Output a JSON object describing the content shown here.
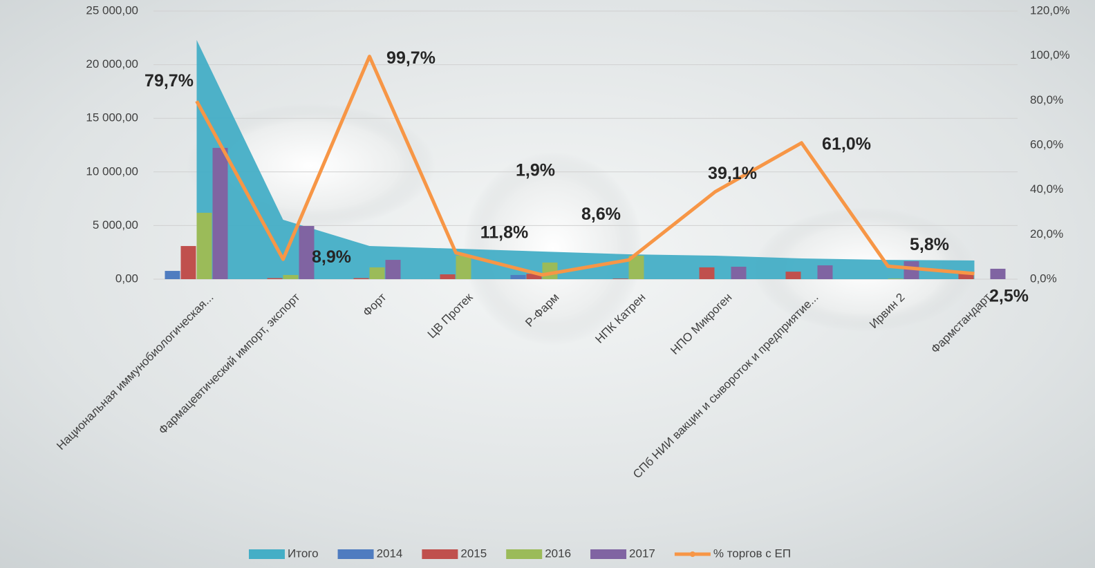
{
  "chart_data": {
    "type": "combo",
    "categories": [
      "Национальная иммунобиологическая...",
      "Фармацевтический импорт, экспорт",
      "Форт",
      "ЦВ Протек",
      "Р-Фарм",
      "НПК Катрен",
      "НПО Микроген",
      "СПб НИИ вакцин и сывороток и предприятие...",
      "Ирвин 2",
      "Фармстандарт"
    ],
    "series": [
      {
        "name": "Итого",
        "kind": "area",
        "color": "#45aec6",
        "values": [
          22300,
          5540,
          3090,
          2840,
          2580,
          2320,
          2190,
          1930,
          1800,
          1740
        ]
      },
      {
        "name": "2014",
        "kind": "bar",
        "color": "#4f7cc0",
        "values": [
          770,
          0,
          0,
          0,
          390,
          0,
          0,
          0,
          0,
          0
        ]
      },
      {
        "name": "2015",
        "kind": "bar",
        "color": "#c0504d",
        "values": [
          3090,
          100,
          100,
          450,
          500,
          50,
          1100,
          700,
          0,
          500
        ]
      },
      {
        "name": "2016",
        "kind": "bar",
        "color": "#9bbb59",
        "values": [
          6190,
          390,
          1100,
          2190,
          1550,
          2190,
          0,
          0,
          50,
          0
        ]
      },
      {
        "name": "2017",
        "kind": "bar",
        "color": "#8064a2",
        "values": [
          12240,
          4960,
          1800,
          0,
          0,
          0,
          1160,
          1290,
          1680,
          970
        ]
      },
      {
        "name": "% торгов с ЕП",
        "kind": "line",
        "axis": "y2",
        "color": "#f79646",
        "values": [
          79.7,
          8.9,
          99.7,
          11.8,
          1.9,
          8.6,
          39.1,
          61.0,
          5.8,
          2.5
        ],
        "value_labels": [
          "79,7%",
          "8,9%",
          "99,7%",
          "11,8%",
          "1,9%",
          "8,6%",
          "39,1%",
          "61,0%",
          "5,8%",
          "2,5%"
        ]
      }
    ],
    "ylim": [
      0,
      25000
    ],
    "yticks": [
      {
        "value": 0,
        "label": "0,00"
      },
      {
        "value": 5000,
        "label": "5 000,00"
      },
      {
        "value": 10000,
        "label": "10 000,00"
      },
      {
        "value": 15000,
        "label": "15 000,00"
      },
      {
        "value": 20000,
        "label": "20 000,00"
      },
      {
        "value": 25000,
        "label": "25 000,00"
      }
    ],
    "y2lim": [
      0,
      120
    ],
    "y2ticks": [
      {
        "value": 0,
        "label": "0,0%"
      },
      {
        "value": 20,
        "label": "20,0%"
      },
      {
        "value": 40,
        "label": "40,0%"
      },
      {
        "value": 60,
        "label": "60,0%"
      },
      {
        "value": 80,
        "label": "80,0%"
      },
      {
        "value": 100,
        "label": "100,0%"
      },
      {
        "value": 120,
        "label": "120,0%"
      }
    ],
    "grid": true
  }
}
